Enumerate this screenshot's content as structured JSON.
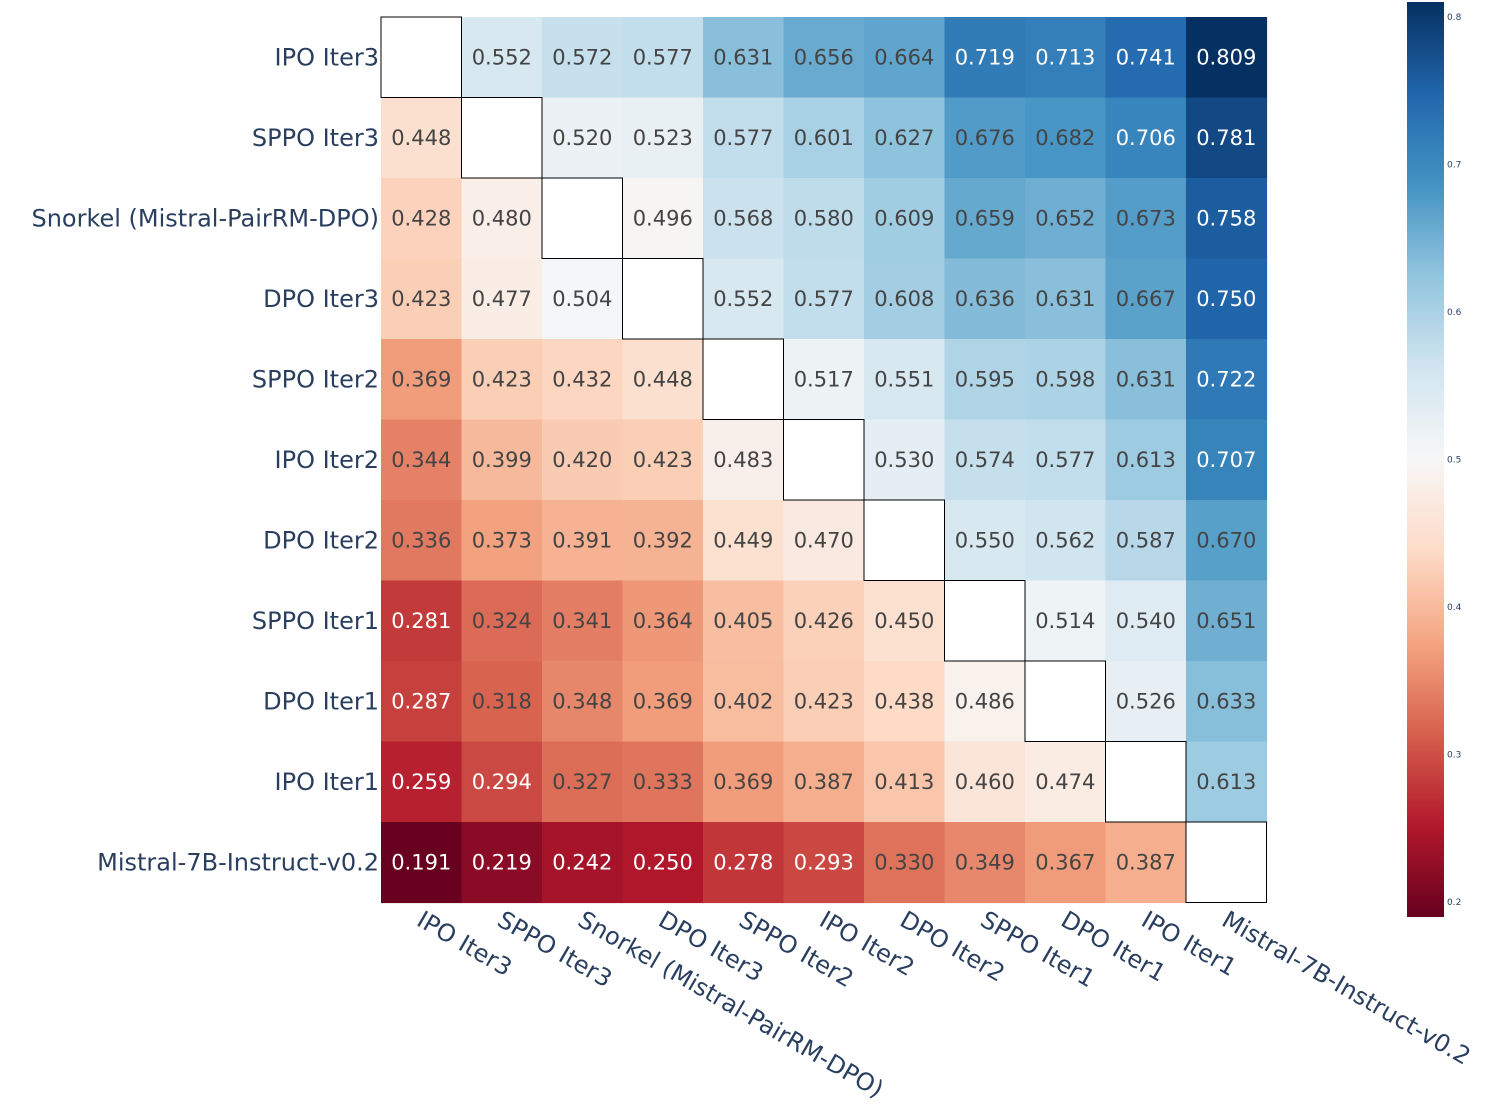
{
  "chart_data": {
    "type": "heatmap",
    "title": "",
    "xlabel": "",
    "ylabel": "",
    "rows": [
      "IPO Iter3",
      "SPPO Iter3",
      "Snorkel (Mistral-PairRM-DPO)",
      "DPO Iter3",
      "SPPO Iter2",
      "IPO Iter2",
      "DPO Iter2",
      "SPPO Iter1",
      "DPO Iter1",
      "IPO Iter1",
      "Mistral-7B-Instruct-v0.2"
    ],
    "columns": [
      "IPO Iter3",
      "SPPO Iter3",
      "Snorkel (Mistral-PairRM-DPO)",
      "DPO Iter3",
      "SPPO Iter2",
      "IPO Iter2",
      "DPO Iter2",
      "SPPO Iter1",
      "DPO Iter1",
      "IPO Iter1",
      "Mistral-7B-Instruct-v0.2"
    ],
    "values": [
      [
        null,
        0.552,
        0.572,
        0.577,
        0.631,
        0.656,
        0.664,
        0.719,
        0.713,
        0.741,
        0.809
      ],
      [
        0.448,
        null,
        0.52,
        0.523,
        0.577,
        0.601,
        0.627,
        0.676,
        0.682,
        0.706,
        0.781
      ],
      [
        0.428,
        0.48,
        null,
        0.496,
        0.568,
        0.58,
        0.609,
        0.659,
        0.652,
        0.673,
        0.758
      ],
      [
        0.423,
        0.477,
        0.504,
        null,
        0.552,
        0.577,
        0.608,
        0.636,
        0.631,
        0.667,
        0.75
      ],
      [
        0.369,
        0.423,
        0.432,
        0.448,
        null,
        0.517,
        0.551,
        0.595,
        0.598,
        0.631,
        0.722
      ],
      [
        0.344,
        0.399,
        0.42,
        0.423,
        0.483,
        null,
        0.53,
        0.574,
        0.577,
        0.613,
        0.707
      ],
      [
        0.336,
        0.373,
        0.391,
        0.392,
        0.449,
        0.47,
        null,
        0.55,
        0.562,
        0.587,
        0.67
      ],
      [
        0.281,
        0.324,
        0.341,
        0.364,
        0.405,
        0.426,
        0.45,
        null,
        0.514,
        0.54,
        0.651
      ],
      [
        0.287,
        0.318,
        0.348,
        0.369,
        0.402,
        0.423,
        0.438,
        0.486,
        null,
        0.526,
        0.633
      ],
      [
        0.259,
        0.294,
        0.327,
        0.333,
        0.369,
        0.387,
        0.413,
        0.46,
        0.474,
        null,
        0.613
      ],
      [
        0.191,
        0.219,
        0.242,
        0.25,
        0.278,
        0.293,
        0.33,
        0.349,
        0.367,
        0.387,
        null
      ]
    ],
    "colorscale": "RdBu",
    "zlim": [
      0.19,
      0.81
    ],
    "colorbar_ticks": [
      0.2,
      0.3,
      0.4,
      0.5,
      0.6,
      0.7,
      0.8
    ],
    "colorbar_tick_labels": [
      "0.2",
      "0.3",
      "0.4",
      "0.5",
      "0.6",
      "0.7",
      "0.8"
    ],
    "diagonal": "empty white cell with black border",
    "value_format": "3 decimals"
  },
  "colors": {
    "axis_text": "#2a3f5f",
    "diagonal_fill": "#ffffff",
    "diagonal_border": "#000000",
    "text_dark": "#444444",
    "text_light": "#ffffff"
  }
}
